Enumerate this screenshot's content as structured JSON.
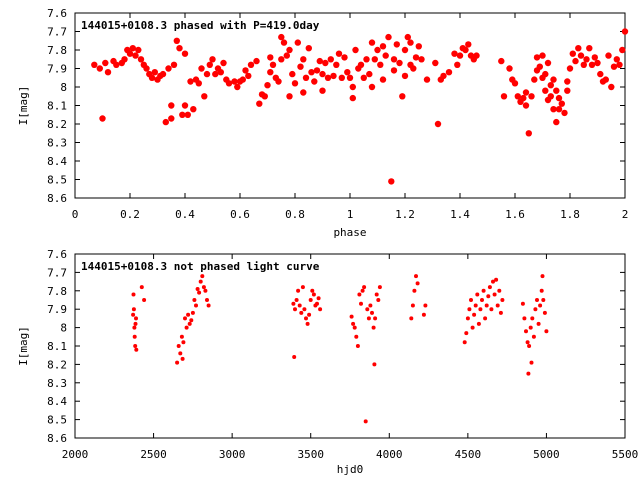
{
  "chart_data": [
    {
      "type": "scatter",
      "title": "144015+0108.3 phased with P=419.0day",
      "xlabel": "phase",
      "ylabel": "I[mag]",
      "xlim": [
        0,
        2
      ],
      "ylim": [
        8.6,
        7.6
      ],
      "y_inverted": true,
      "grid": false,
      "x_ticks": [
        "0",
        "0.2",
        "0.4",
        "0.6",
        "0.8",
        "1",
        "1.2",
        "1.4",
        "1.6",
        "1.8",
        "2"
      ],
      "y_ticks": [
        "7.6",
        "7.7",
        "7.8",
        "7.9",
        "8",
        "8.1",
        "8.2",
        "8.3",
        "8.4",
        "8.5",
        "8.6"
      ],
      "marker": "filled-circle-large",
      "color": "#ff0000",
      "points": [
        [
          0.07,
          7.88
        ],
        [
          0.09,
          7.9
        ],
        [
          0.1,
          8.17
        ],
        [
          0.11,
          7.87
        ],
        [
          0.12,
          7.92
        ],
        [
          0.14,
          7.86
        ],
        [
          0.15,
          7.88
        ],
        [
          0.17,
          7.87
        ],
        [
          0.18,
          7.85
        ],
        [
          0.19,
          7.8
        ],
        [
          0.2,
          7.82
        ],
        [
          0.21,
          7.79
        ],
        [
          0.22,
          7.83
        ],
        [
          0.23,
          7.8
        ],
        [
          0.24,
          7.85
        ],
        [
          0.25,
          7.88
        ],
        [
          0.26,
          7.9
        ],
        [
          0.27,
          7.93
        ],
        [
          0.28,
          7.95
        ],
        [
          0.29,
          7.92
        ],
        [
          0.3,
          7.96
        ],
        [
          0.31,
          7.94
        ],
        [
          0.32,
          7.93
        ],
        [
          0.33,
          8.19
        ],
        [
          0.34,
          7.9
        ],
        [
          0.35,
          8.1
        ],
        [
          0.35,
          8.17
        ],
        [
          0.36,
          7.88
        ],
        [
          0.37,
          7.75
        ],
        [
          0.38,
          7.79
        ],
        [
          0.39,
          8.15
        ],
        [
          0.4,
          8.1
        ],
        [
          0.4,
          7.82
        ],
        [
          0.41,
          8.15
        ],
        [
          0.42,
          7.97
        ],
        [
          0.43,
          8.12
        ],
        [
          0.44,
          7.96
        ],
        [
          0.45,
          7.98
        ],
        [
          0.46,
          7.9
        ],
        [
          0.47,
          8.05
        ],
        [
          0.48,
          7.93
        ],
        [
          0.49,
          7.88
        ],
        [
          0.5,
          7.85
        ],
        [
          0.51,
          7.93
        ],
        [
          0.52,
          7.9
        ],
        [
          0.53,
          7.92
        ],
        [
          0.54,
          7.87
        ],
        [
          0.55,
          7.96
        ],
        [
          0.56,
          7.98
        ],
        [
          0.58,
          7.97
        ],
        [
          0.59,
          8.0
        ],
        [
          0.6,
          7.97
        ],
        [
          0.61,
          7.96
        ],
        [
          0.62,
          7.91
        ],
        [
          0.63,
          7.94
        ],
        [
          0.64,
          7.88
        ],
        [
          0.66,
          7.86
        ],
        [
          0.67,
          8.09
        ],
        [
          0.68,
          8.04
        ],
        [
          0.69,
          8.05
        ],
        [
          0.7,
          7.99
        ],
        [
          0.71,
          7.92
        ],
        [
          0.71,
          7.84
        ],
        [
          0.72,
          7.88
        ],
        [
          0.73,
          7.95
        ],
        [
          0.74,
          7.97
        ],
        [
          0.75,
          7.85
        ],
        [
          0.75,
          7.73
        ],
        [
          0.76,
          7.76
        ],
        [
          0.77,
          7.83
        ],
        [
          0.78,
          8.05
        ],
        [
          0.78,
          7.8
        ],
        [
          0.79,
          7.93
        ],
        [
          0.8,
          7.98
        ],
        [
          0.81,
          7.76
        ],
        [
          0.82,
          7.89
        ],
        [
          0.83,
          8.03
        ],
        [
          0.83,
          7.85
        ],
        [
          0.84,
          7.95
        ],
        [
          0.85,
          7.79
        ],
        [
          0.86,
          7.92
        ],
        [
          0.87,
          7.97
        ],
        [
          0.88,
          7.91
        ],
        [
          0.89,
          7.86
        ],
        [
          0.9,
          8.02
        ],
        [
          0.9,
          7.93
        ],
        [
          0.91,
          7.87
        ],
        [
          0.92,
          7.95
        ],
        [
          0.93,
          7.85
        ],
        [
          0.94,
          7.94
        ],
        [
          0.95,
          7.88
        ],
        [
          0.96,
          7.82
        ],
        [
          0.97,
          7.95
        ],
        [
          0.98,
          7.84
        ],
        [
          0.99,
          7.92
        ],
        [
          1.0,
          7.95
        ],
        [
          1.01,
          8.0
        ],
        [
          1.01,
          8.06
        ],
        [
          1.02,
          7.8
        ],
        [
          1.03,
          7.9
        ],
        [
          1.04,
          7.88
        ],
        [
          1.05,
          7.95
        ],
        [
          1.06,
          7.85
        ],
        [
          1.07,
          7.93
        ],
        [
          1.08,
          7.76
        ],
        [
          1.08,
          8.0
        ],
        [
          1.09,
          7.85
        ],
        [
          1.1,
          7.8
        ],
        [
          1.11,
          7.88
        ],
        [
          1.12,
          7.78
        ],
        [
          1.12,
          7.96
        ],
        [
          1.13,
          7.83
        ],
        [
          1.14,
          7.73
        ],
        [
          1.15,
          8.51
        ],
        [
          1.16,
          7.85
        ],
        [
          1.16,
          7.91
        ],
        [
          1.17,
          7.77
        ],
        [
          1.18,
          7.87
        ],
        [
          1.19,
          8.05
        ],
        [
          1.2,
          7.94
        ],
        [
          1.2,
          7.8
        ],
        [
          1.21,
          7.73
        ],
        [
          1.22,
          7.88
        ],
        [
          1.22,
          7.76
        ],
        [
          1.23,
          7.9
        ],
        [
          1.24,
          7.84
        ],
        [
          1.25,
          7.78
        ],
        [
          1.26,
          7.85
        ],
        [
          1.28,
          7.96
        ],
        [
          1.31,
          7.87
        ],
        [
          1.32,
          8.2
        ],
        [
          1.33,
          7.96
        ],
        [
          1.34,
          7.94
        ],
        [
          1.36,
          7.92
        ],
        [
          1.38,
          7.82
        ],
        [
          1.39,
          7.88
        ],
        [
          1.4,
          7.83
        ],
        [
          1.41,
          7.79
        ],
        [
          1.42,
          7.8
        ],
        [
          1.43,
          7.77
        ],
        [
          1.44,
          7.83
        ],
        [
          1.45,
          7.85
        ],
        [
          1.46,
          7.83
        ],
        [
          1.55,
          7.86
        ],
        [
          1.56,
          8.05
        ],
        [
          1.58,
          7.9
        ],
        [
          1.59,
          7.96
        ],
        [
          1.6,
          7.98
        ],
        [
          1.61,
          8.05
        ],
        [
          1.62,
          8.08
        ],
        [
          1.63,
          8.06
        ],
        [
          1.64,
          8.03
        ],
        [
          1.64,
          8.1
        ],
        [
          1.65,
          8.25
        ],
        [
          1.66,
          8.05
        ],
        [
          1.67,
          7.96
        ],
        [
          1.68,
          7.84
        ],
        [
          1.68,
          7.91
        ],
        [
          1.69,
          7.89
        ],
        [
          1.7,
          7.83
        ],
        [
          1.7,
          7.95
        ],
        [
          1.71,
          8.02
        ],
        [
          1.71,
          7.93
        ],
        [
          1.72,
          7.87
        ],
        [
          1.72,
          8.07
        ],
        [
          1.73,
          7.99
        ],
        [
          1.73,
          8.05
        ],
        [
          1.74,
          7.96
        ],
        [
          1.74,
          8.12
        ],
        [
          1.75,
          8.02
        ],
        [
          1.75,
          8.19
        ],
        [
          1.76,
          8.06
        ],
        [
          1.76,
          8.12
        ],
        [
          1.77,
          8.09
        ],
        [
          1.78,
          8.14
        ],
        [
          1.79,
          8.02
        ],
        [
          1.79,
          7.97
        ],
        [
          1.8,
          7.9
        ],
        [
          1.81,
          7.82
        ],
        [
          1.82,
          7.86
        ],
        [
          1.83,
          7.79
        ],
        [
          1.84,
          7.83
        ],
        [
          1.85,
          7.88
        ],
        [
          1.86,
          7.85
        ],
        [
          1.87,
          7.79
        ],
        [
          1.88,
          7.88
        ],
        [
          1.89,
          7.84
        ],
        [
          1.9,
          7.87
        ],
        [
          1.91,
          7.93
        ],
        [
          1.92,
          7.97
        ],
        [
          1.93,
          7.96
        ],
        [
          1.94,
          7.83
        ],
        [
          1.95,
          8.0
        ],
        [
          1.96,
          7.89
        ],
        [
          1.97,
          7.85
        ],
        [
          1.98,
          7.88
        ],
        [
          1.99,
          7.8
        ],
        [
          2.0,
          7.7
        ]
      ]
    },
    {
      "type": "scatter",
      "title": "144015+0108.3 not phased light curve",
      "xlabel": "hjd0",
      "ylabel": "I[mag]",
      "xlim": [
        2000,
        5500
      ],
      "ylim": [
        8.6,
        7.6
      ],
      "y_inverted": true,
      "grid": false,
      "x_ticks": [
        "2000",
        "2500",
        "3000",
        "3500",
        "4000",
        "4500",
        "5000",
        "5500"
      ],
      "y_ticks": [
        "7.6",
        "7.7",
        "7.8",
        "7.9",
        "8",
        "8.1",
        "8.2",
        "8.3",
        "8.4",
        "8.5",
        "8.6"
      ],
      "marker": "filled-circle-small",
      "color": "#ff0000",
      "points": [
        [
          2370,
          7.93
        ],
        [
          2372,
          7.82
        ],
        [
          2375,
          7.9
        ],
        [
          2378,
          8.0
        ],
        [
          2380,
          8.05
        ],
        [
          2383,
          8.1
        ],
        [
          2385,
          7.98
        ],
        [
          2388,
          7.95
        ],
        [
          2390,
          8.12
        ],
        [
          2425,
          7.78
        ],
        [
          2440,
          7.85
        ],
        [
          2650,
          8.19
        ],
        [
          2660,
          8.1
        ],
        [
          2670,
          8.14
        ],
        [
          2680,
          8.05
        ],
        [
          2685,
          8.17
        ],
        [
          2690,
          8.08
        ],
        [
          2700,
          7.95
        ],
        [
          2710,
          8.0
        ],
        [
          2720,
          7.93
        ],
        [
          2730,
          7.98
        ],
        [
          2740,
          7.96
        ],
        [
          2750,
          7.92
        ],
        [
          2760,
          7.85
        ],
        [
          2770,
          7.88
        ],
        [
          2780,
          7.79
        ],
        [
          2790,
          7.81
        ],
        [
          2800,
          7.75
        ],
        [
          2810,
          7.72
        ],
        [
          2820,
          7.78
        ],
        [
          2830,
          7.8
        ],
        [
          2840,
          7.85
        ],
        [
          2850,
          7.88
        ],
        [
          3390,
          7.87
        ],
        [
          3395,
          8.16
        ],
        [
          3400,
          7.9
        ],
        [
          3410,
          7.85
        ],
        [
          3420,
          7.8
        ],
        [
          3430,
          7.88
        ],
        [
          3440,
          7.92
        ],
        [
          3450,
          7.78
        ],
        [
          3460,
          7.9
        ],
        [
          3470,
          7.95
        ],
        [
          3480,
          7.98
        ],
        [
          3490,
          7.93
        ],
        [
          3500,
          7.85
        ],
        [
          3510,
          7.8
        ],
        [
          3520,
          7.82
        ],
        [
          3530,
          7.88
        ],
        [
          3540,
          7.87
        ],
        [
          3550,
          7.84
        ],
        [
          3560,
          7.9
        ],
        [
          3760,
          7.94
        ],
        [
          3770,
          7.98
        ],
        [
          3780,
          8.0
        ],
        [
          3790,
          8.05
        ],
        [
          3800,
          8.1
        ],
        [
          3810,
          7.82
        ],
        [
          3820,
          7.87
        ],
        [
          3830,
          7.8
        ],
        [
          3840,
          7.78
        ],
        [
          3850,
          8.51
        ],
        [
          3860,
          7.9
        ],
        [
          3870,
          7.95
        ],
        [
          3880,
          7.88
        ],
        [
          3890,
          7.92
        ],
        [
          3900,
          8.0
        ],
        [
          3905,
          8.2
        ],
        [
          3910,
          7.95
        ],
        [
          3920,
          7.82
        ],
        [
          3930,
          7.85
        ],
        [
          3940,
          7.78
        ],
        [
          4140,
          7.95
        ],
        [
          4150,
          7.88
        ],
        [
          4160,
          7.8
        ],
        [
          4170,
          7.72
        ],
        [
          4180,
          7.76
        ],
        [
          4220,
          7.93
        ],
        [
          4230,
          7.88
        ],
        [
          4480,
          8.08
        ],
        [
          4490,
          8.03
        ],
        [
          4500,
          7.95
        ],
        [
          4510,
          7.9
        ],
        [
          4520,
          7.85
        ],
        [
          4530,
          8.0
        ],
        [
          4540,
          7.93
        ],
        [
          4550,
          7.88
        ],
        [
          4560,
          7.82
        ],
        [
          4570,
          7.98
        ],
        [
          4580,
          7.9
        ],
        [
          4590,
          7.85
        ],
        [
          4600,
          7.8
        ],
        [
          4610,
          7.95
        ],
        [
          4620,
          7.88
        ],
        [
          4630,
          7.83
        ],
        [
          4640,
          7.78
        ],
        [
          4650,
          7.9
        ],
        [
          4660,
          7.75
        ],
        [
          4670,
          7.82
        ],
        [
          4680,
          7.74
        ],
        [
          4690,
          7.88
        ],
        [
          4700,
          7.8
        ],
        [
          4710,
          7.92
        ],
        [
          4720,
          7.85
        ],
        [
          4850,
          7.87
        ],
        [
          4860,
          7.95
        ],
        [
          4870,
          8.02
        ],
        [
          4880,
          8.08
        ],
        [
          4885,
          8.25
        ],
        [
          4890,
          8.1
        ],
        [
          4900,
          8.0
        ],
        [
          4905,
          8.19
        ],
        [
          4910,
          7.95
        ],
        [
          4920,
          8.05
        ],
        [
          4930,
          7.9
        ],
        [
          4940,
          7.85
        ],
        [
          4950,
          7.98
        ],
        [
          4960,
          7.88
        ],
        [
          4970,
          7.8
        ],
        [
          4975,
          7.72
        ],
        [
          4980,
          7.85
        ],
        [
          4990,
          7.92
        ],
        [
          5000,
          8.02
        ]
      ]
    }
  ]
}
